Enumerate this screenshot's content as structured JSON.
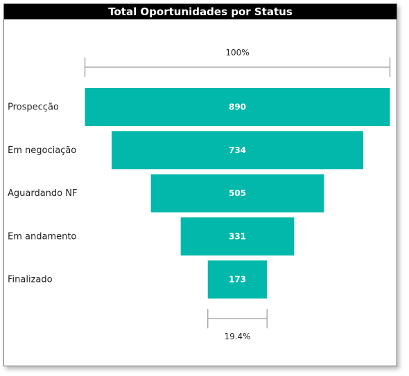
{
  "chart_data": {
    "type": "funnel",
    "title": "Total Oportunidades por Status",
    "categories": [
      "Prospecção",
      "Em negociação",
      "Aguardando NF",
      "Em andamento",
      "Finalizado"
    ],
    "values": [
      890,
      734,
      505,
      331,
      173
    ],
    "top_percent_label": "100%",
    "bottom_percent_label": "19.4%",
    "colors": {
      "bar": "#01B8AA",
      "bar_label": "#FFFFFF",
      "bracket": "#AAAAAA"
    }
  }
}
